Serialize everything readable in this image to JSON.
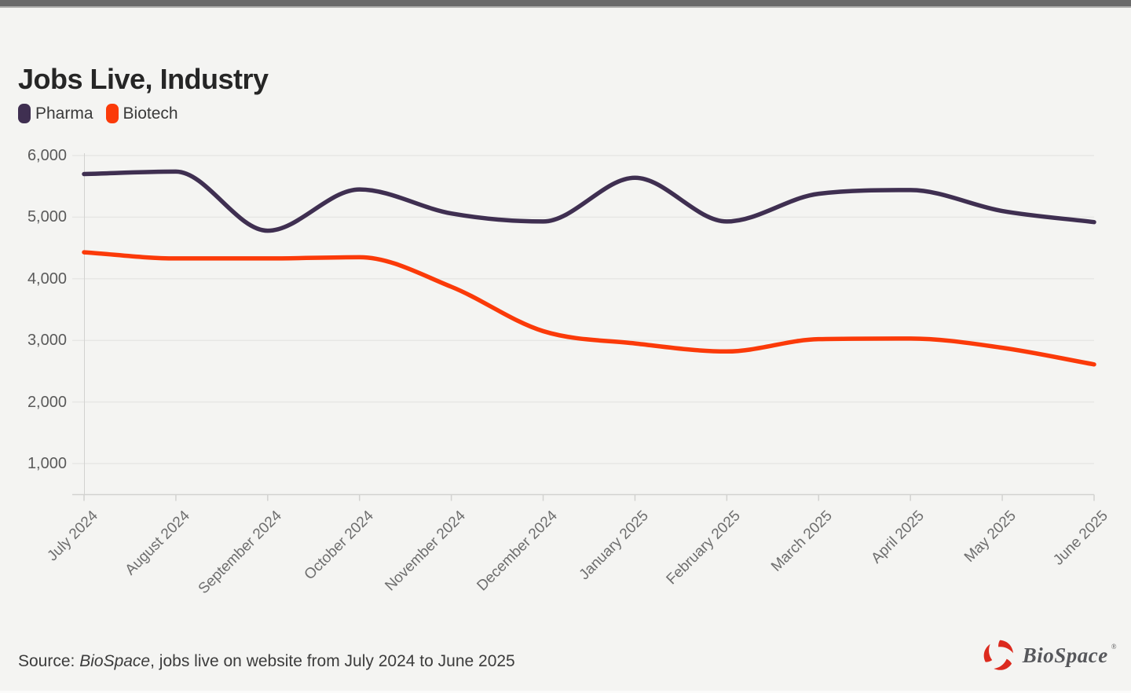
{
  "header": {
    "title": "Jobs Live, Industry"
  },
  "colors": {
    "background": "#f4f4f2",
    "topbar": "#6a6a6a",
    "grid": "#e7e7e5",
    "axis": "#d2d2d0",
    "tick": "#d2d2d0",
    "pharma": "#3f2f51",
    "biotech": "#fb3a09",
    "logo_red": "#dc2a1e"
  },
  "chart_data": {
    "type": "line",
    "title": "Jobs Live, Industry",
    "x": [
      "July 2024",
      "August 2024",
      "September 2024",
      "October 2024",
      "November 2024",
      "December 2024",
      "January 2025",
      "February 2025",
      "March 2025",
      "April 2025",
      "May 2025",
      "June 2025"
    ],
    "series": [
      {
        "name": "Pharma",
        "color": "#3f2f51",
        "values": [
          5700,
          5740,
          4780,
          5450,
          5060,
          4930,
          5640,
          4930,
          5380,
          5440,
          5100,
          4920
        ]
      },
      {
        "name": "Biotech",
        "color": "#fb3a09",
        "values": [
          4430,
          4330,
          4330,
          4350,
          3870,
          3150,
          2950,
          2820,
          3020,
          3030,
          2880,
          2610
        ]
      }
    ],
    "yticks": [
      6000,
      5000,
      4000,
      3000,
      2000,
      1000
    ],
    "ytick_labels": [
      "6,000",
      "5,000",
      "4,000",
      "3,000",
      "2,000",
      "1,000"
    ],
    "ylim": [
      500,
      6000
    ],
    "xlabel": "",
    "ylabel": "",
    "grid": "horizontal-only",
    "legend_position": "top-left",
    "interpolation": "monotone"
  },
  "footer": {
    "prefix": "Source: ",
    "source_name": "BioSpace",
    "rest": ", jobs live on website from July 2024 to June 2025"
  },
  "logo": {
    "text": "BioSpace",
    "reg": "®",
    "icon": "biospace-swirl-icon"
  }
}
